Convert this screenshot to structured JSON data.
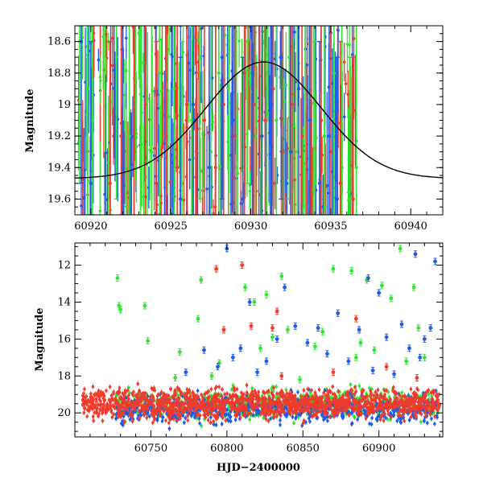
{
  "colors": {
    "green": "#33e633",
    "red": "#f23b2c",
    "blue": "#1f5ce6",
    "model": "#000000"
  },
  "chart_data": [
    {
      "type": "scatter",
      "panel": "top",
      "title": "",
      "xlabel": "",
      "ylabel": "Magnitude",
      "xlim": [
        60919,
        60942
      ],
      "ylim": [
        19.7,
        18.5
      ],
      "y_inverted": true,
      "xticks": [
        "60920",
        "60925",
        "60930",
        "60935",
        "60940"
      ],
      "yticks": [
        "18.6",
        "18.8",
        "19",
        "19.2",
        "19.4",
        "19.6"
      ],
      "x_tick_values": [
        60920,
        60925,
        60930,
        60935,
        60940
      ],
      "y_tick_values": [
        18.6,
        18.8,
        19.0,
        19.2,
        19.4,
        19.6
      ],
      "model_curve": {
        "type": "line",
        "peak_x": 60930.8,
        "peak_mag": 18.73,
        "baseline_mag": 19.47,
        "width_days": 3.6
      },
      "series": [
        {
          "color": "green",
          "x": [
            60919.3,
            60919.8,
            60920.1,
            60921.6,
            60922.4,
            60923.1,
            60923.8,
            60924.3,
            60925.2,
            60925.7,
            60926.3,
            60926.8,
            60927.5,
            60928.0,
            60928.6,
            60929.1,
            60929.8,
            60930.3,
            60931.0,
            60931.6,
            60932.4,
            60932.9,
            60933.4,
            60934.0,
            60934.6,
            60935.2,
            60935.7,
            60936.2,
            60936.6
          ],
          "y": [
            18.6,
            18.9,
            19.1,
            18.7,
            19.2,
            19.4,
            19.3,
            18.8,
            18.9,
            19.5,
            19.1,
            18.7,
            19.3,
            18.8,
            18.9,
            19.4,
            18.6,
            19.2,
            18.8,
            19.1,
            18.7,
            19.3,
            18.9,
            19.5,
            19.2,
            18.8,
            19.4,
            19.6,
            19.4
          ]
        },
        {
          "color": "red",
          "x": [
            60921.2,
            60921.9,
            60922.7,
            60923.4,
            60924.1,
            60924.7,
            60925.4,
            60926.0,
            60926.6,
            60927.1,
            60927.8,
            60928.3,
            60929.0,
            60929.6,
            60930.2,
            60930.9,
            60931.4,
            60932.0,
            60932.6,
            60933.2,
            60933.8,
            60934.4,
            60935.0,
            60935.6,
            60936.4
          ],
          "y": [
            19.5,
            19.2,
            19.3,
            19.0,
            19.5,
            19.2,
            19.4,
            19.0,
            19.3,
            19.1,
            19.4,
            19.0,
            19.2,
            18.8,
            19.0,
            19.1,
            18.9,
            19.3,
            19.0,
            19.2,
            19.4,
            19.1,
            19.3,
            19.5,
            19.6
          ]
        },
        {
          "color": "blue",
          "x": [
            60919.4,
            60920.0,
            60922.0,
            60925.6,
            60926.4,
            60927.4,
            60928.2,
            60928.9,
            60929.5,
            60930.1,
            60930.7,
            60931.3,
            60931.9,
            60932.5,
            60933.0,
            60933.7,
            60934.3,
            60934.9,
            60935.4
          ],
          "y": [
            18.6,
            19.5,
            19.4,
            19.6,
            19.0,
            19.4,
            18.7,
            19.1,
            19.6,
            18.8,
            19.2,
            19.0,
            18.7,
            19.3,
            18.9,
            19.1,
            19.5,
            19.2,
            19.6
          ]
        }
      ]
    },
    {
      "type": "scatter",
      "panel": "bottom",
      "title": "",
      "xlabel": "HJD−2400000",
      "ylabel": "Magnitude",
      "xlim": [
        60700,
        60942
      ],
      "ylim": [
        21.3,
        10.8
      ],
      "y_inverted": true,
      "xticks": [
        "60750",
        "60800",
        "60850",
        "60900"
      ],
      "yticks": [
        "12",
        "14",
        "16",
        "18",
        "20"
      ],
      "x_tick_values": [
        60750,
        60800,
        60850,
        60900
      ],
      "y_tick_values": [
        12,
        14,
        16,
        18,
        20
      ],
      "baseline_band": {
        "x_range": [
          60705,
          60940
        ],
        "mag_center": 19.5,
        "mag_spread": 1.3,
        "note": "dense cloud of thousands of points in all three colors"
      },
      "outliers": [
        {
          "color": "green",
          "x": [
            60728,
            60729,
            60730,
            60746,
            60748,
            60766,
            60769,
            60781,
            60783,
            60790,
            60795,
            60812,
            60818,
            60822,
            60826,
            60830,
            60836,
            60840,
            60848,
            60858,
            60863,
            60870,
            60882,
            60885,
            60888,
            60892,
            60897,
            60902,
            60908,
            60914,
            60918,
            60923,
            60926,
            60930
          ],
          "y": [
            12.7,
            14.2,
            14.4,
            14.2,
            16.1,
            18.1,
            16.7,
            14.9,
            12.8,
            18.0,
            17.3,
            13.2,
            14.0,
            16.5,
            13.6,
            15.9,
            12.6,
            15.5,
            18.2,
            16.4,
            15.6,
            12.2,
            12.3,
            17.0,
            16.2,
            12.8,
            16.6,
            13.1,
            13.8,
            11.1,
            17.2,
            13.2,
            15.4,
            17.0
          ]
        },
        {
          "color": "red",
          "x": [
            60793,
            60798,
            60810,
            60816,
            60830,
            60833,
            60836,
            60842,
            60870,
            60885,
            60905,
            60925
          ],
          "y": [
            12.2,
            15.5,
            12.0,
            15.3,
            15.4,
            14.5,
            18.0,
            19.0,
            17.8,
            14.9,
            17.5,
            18.1
          ]
        },
        {
          "color": "blue",
          "x": [
            60773,
            60785,
            60794,
            60800,
            60804,
            60809,
            60815,
            60820,
            60826,
            60833,
            60838,
            60845,
            60853,
            60860,
            60866,
            60873,
            60880,
            60887,
            60893,
            60896,
            60900,
            60905,
            60910,
            60915,
            60920,
            60924,
            60927,
            60930,
            60934,
            60937
          ],
          "y": [
            17.8,
            16.6,
            17.5,
            11.1,
            17.0,
            16.5,
            14.0,
            17.8,
            17.2,
            16.0,
            13.2,
            15.3,
            16.2,
            15.4,
            16.8,
            14.6,
            17.2,
            15.5,
            12.7,
            17.7,
            13.5,
            15.9,
            17.9,
            15.2,
            16.5,
            11.4,
            17.0,
            16.0,
            15.4,
            11.8
          ]
        }
      ]
    }
  ]
}
